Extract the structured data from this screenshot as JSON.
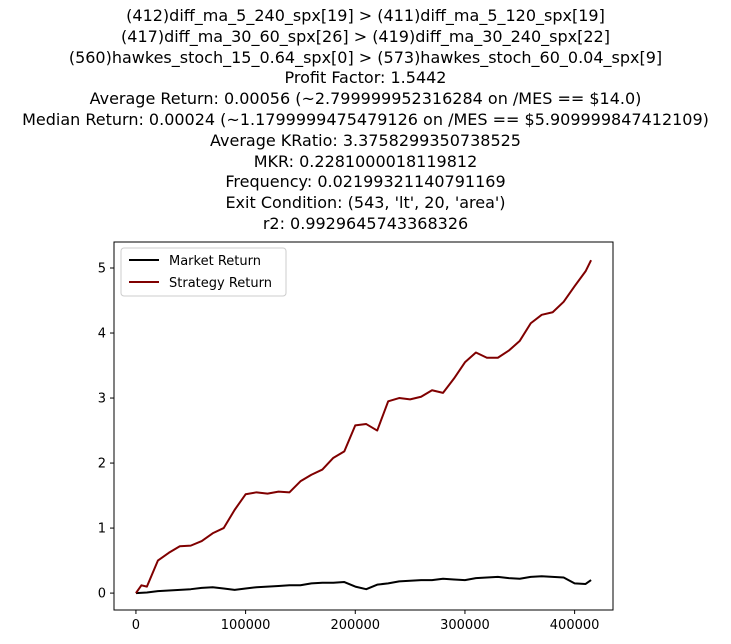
{
  "chart_data": {
    "type": "line",
    "title_lines": [
      "(412)diff_ma_5_240_spx[19] > (411)diff_ma_5_120_spx[19]",
      "(417)diff_ma_30_60_spx[26] > (419)diff_ma_30_240_spx[22]",
      "(560)hawkes_stoch_15_0.64_spx[0] > (573)hawkes_stoch_60_0.04_spx[9]",
      "Profit Factor: 1.5442",
      "Average Return: 0.00056 (~2.799999952316284 on /MES == $14.0)",
      "Median Return: 0.00024 (~1.1799999475479126 on /MES == $5.909999847412109)",
      "Average KRatio: 3.3758299350738525",
      "MKR: 0.2281000018119812",
      "Frequency: 0.02199321140791169",
      "Exit Condition: (543, 'lt', 20, 'area')",
      "r2: 0.9929645743368326"
    ],
    "xlabel": "",
    "ylabel": "",
    "xlim": [
      -20000,
      435000
    ],
    "ylim": [
      -0.26,
      5.4
    ],
    "x_ticks": [
      0,
      100000,
      200000,
      300000,
      400000
    ],
    "x_tick_labels": [
      "0",
      "100000",
      "200000",
      "300000",
      "400000"
    ],
    "y_ticks": [
      0,
      1,
      2,
      3,
      4,
      5
    ],
    "y_tick_labels": [
      "0",
      "1",
      "2",
      "3",
      "4",
      "5"
    ],
    "grid": false,
    "legend_position": "top-left",
    "series": [
      {
        "name": "Market Return",
        "color": "#000000",
        "x": [
          0,
          10000,
          20000,
          30000,
          40000,
          50000,
          60000,
          70000,
          80000,
          90000,
          100000,
          110000,
          120000,
          130000,
          140000,
          150000,
          160000,
          170000,
          180000,
          190000,
          200000,
          210000,
          220000,
          230000,
          240000,
          250000,
          260000,
          270000,
          280000,
          290000,
          300000,
          310000,
          320000,
          330000,
          340000,
          350000,
          360000,
          370000,
          380000,
          390000,
          400000,
          410000,
          415000
        ],
        "y": [
          0.0,
          0.01,
          0.03,
          0.04,
          0.05,
          0.06,
          0.08,
          0.09,
          0.07,
          0.05,
          0.07,
          0.09,
          0.1,
          0.11,
          0.12,
          0.12,
          0.15,
          0.16,
          0.16,
          0.17,
          0.1,
          0.06,
          0.13,
          0.15,
          0.18,
          0.19,
          0.2,
          0.2,
          0.22,
          0.21,
          0.2,
          0.23,
          0.24,
          0.25,
          0.23,
          0.22,
          0.25,
          0.26,
          0.25,
          0.24,
          0.15,
          0.14,
          0.2
        ]
      },
      {
        "name": "Strategy Return",
        "color": "#800000",
        "x": [
          0,
          5000,
          10000,
          15000,
          20000,
          30000,
          40000,
          50000,
          60000,
          70000,
          80000,
          90000,
          100000,
          110000,
          120000,
          130000,
          140000,
          150000,
          160000,
          170000,
          180000,
          190000,
          200000,
          210000,
          220000,
          230000,
          240000,
          250000,
          260000,
          270000,
          280000,
          290000,
          300000,
          310000,
          320000,
          330000,
          340000,
          350000,
          360000,
          370000,
          380000,
          390000,
          400000,
          410000,
          415000
        ],
        "y": [
          0.0,
          0.12,
          0.1,
          0.3,
          0.5,
          0.62,
          0.72,
          0.73,
          0.8,
          0.92,
          1.0,
          1.28,
          1.52,
          1.55,
          1.53,
          1.56,
          1.55,
          1.72,
          1.82,
          1.9,
          2.08,
          2.18,
          2.58,
          2.6,
          2.5,
          2.95,
          3.0,
          2.98,
          3.02,
          3.12,
          3.08,
          3.3,
          3.55,
          3.7,
          3.62,
          3.62,
          3.73,
          3.88,
          4.15,
          4.28,
          4.32,
          4.48,
          4.72,
          4.95,
          5.12
        ]
      }
    ]
  }
}
